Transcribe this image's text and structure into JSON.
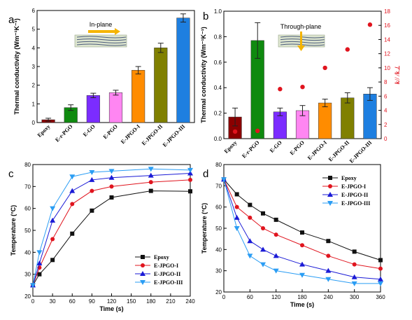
{
  "chart_data": [
    {
      "panel": "a",
      "type": "bar",
      "annotation": "In-plane",
      "ylabel": "Thermal conductivity (Wm⁻¹K⁻¹)",
      "ylim": [
        0,
        6
      ],
      "yticks": [
        0,
        1,
        2,
        3,
        4,
        5,
        6
      ],
      "categories": [
        "Epoxy",
        "E-r-PGO",
        "E-GO",
        "E-PGO",
        "E-JPGO-I",
        "E-JPGO-II",
        "E-JPGO-III"
      ],
      "values": [
        0.15,
        0.8,
        1.45,
        1.6,
        2.8,
        4.0,
        5.6
      ],
      "errors": [
        0.08,
        0.15,
        0.12,
        0.13,
        0.2,
        0.25,
        0.22
      ],
      "colors": [
        "#8b0000",
        "#0f8a0f",
        "#7b2cff",
        "#ff86f2",
        "#ff8c00",
        "#808000",
        "#1e7fe0"
      ]
    },
    {
      "panel": "b",
      "type": "bar",
      "annotation": "Through-plane",
      "ylabel": "Thermal conductivity (Wm⁻¹K⁻¹)",
      "ylim": [
        0,
        1.0
      ],
      "yticks": [
        0.0,
        0.2,
        0.4,
        0.6,
        0.8,
        1.0
      ],
      "y2label": "k// /k⊥",
      "y2lim": [
        0,
        18
      ],
      "y2ticks": [
        0,
        2,
        4,
        6,
        8,
        10,
        12,
        14,
        16,
        18
      ],
      "categories": [
        "Epoxy",
        "E-r-PGO",
        "E-GO",
        "E-PGO",
        "E-JPGO-I",
        "E-JPGO-II",
        "E-JPGO-III"
      ],
      "values": [
        0.17,
        0.77,
        0.21,
        0.22,
        0.28,
        0.32,
        0.35
      ],
      "errors": [
        0.07,
        0.14,
        0.03,
        0.04,
        0.03,
        0.04,
        0.05
      ],
      "ratio_values": [
        1.0,
        1.1,
        7.0,
        7.3,
        10.0,
        12.6,
        16.1
      ],
      "colors": [
        "#8b0000",
        "#0f8a0f",
        "#7b2cff",
        "#ff86f2",
        "#ff8c00",
        "#808000",
        "#1e7fe0"
      ],
      "ratio_color": "#e0141e"
    },
    {
      "panel": "c",
      "type": "line",
      "xlabel": "Time (s)",
      "ylabel": "Temperature (°C)",
      "xlim": [
        0,
        240
      ],
      "ylim": [
        20,
        80
      ],
      "xticks": [
        0,
        30,
        60,
        90,
        120,
        150,
        180,
        210,
        240
      ],
      "yticks": [
        20,
        30,
        40,
        50,
        60,
        70,
        80
      ],
      "legend": "bottom-right",
      "series": [
        {
          "name": "Epoxy",
          "color": "#111111",
          "marker": "square",
          "x": [
            0,
            10,
            30,
            60,
            90,
            120,
            180,
            240
          ],
          "y": [
            25,
            30,
            36.5,
            48.5,
            59,
            65,
            68,
            67.8
          ]
        },
        {
          "name": "E-JPGO-I",
          "color": "#e0141e",
          "marker": "circle",
          "x": [
            0,
            10,
            30,
            60,
            90,
            120,
            180,
            240
          ],
          "y": [
            25,
            33,
            46,
            62,
            68,
            70,
            72,
            73
          ]
        },
        {
          "name": "E-JPGO-II",
          "color": "#1a1ad6",
          "marker": "triangle-up",
          "x": [
            0,
            10,
            30,
            60,
            90,
            120,
            180,
            240
          ],
          "y": [
            25,
            35,
            54.5,
            68,
            73,
            74,
            75,
            76
          ]
        },
        {
          "name": "E-JPGO-III",
          "color": "#2a9df4",
          "marker": "triangle-down",
          "x": [
            0,
            10,
            30,
            60,
            90,
            120,
            180,
            240
          ],
          "y": [
            25,
            40,
            60,
            74.5,
            76.5,
            77,
            78,
            77.5
          ]
        }
      ]
    },
    {
      "panel": "d",
      "type": "line",
      "xlabel": "Time (s)",
      "ylabel": "Temperature (°C)",
      "xlim": [
        0,
        360
      ],
      "ylim": [
        20,
        80
      ],
      "xticks": [
        0,
        60,
        120,
        180,
        240,
        300,
        360
      ],
      "yticks": [
        20,
        30,
        40,
        50,
        60,
        70,
        80
      ],
      "legend": "top-right",
      "series": [
        {
          "name": "Epoxy",
          "color": "#111111",
          "marker": "square",
          "x": [
            0,
            30,
            60,
            90,
            120,
            180,
            240,
            300,
            360
          ],
          "y": [
            73,
            66,
            61,
            57,
            54,
            48,
            44,
            39,
            35
          ]
        },
        {
          "name": "E-JPGO-I",
          "color": "#e0141e",
          "marker": "circle",
          "x": [
            0,
            30,
            60,
            90,
            120,
            180,
            240,
            300,
            360
          ],
          "y": [
            73,
            60,
            55,
            50,
            47,
            42,
            37,
            33,
            31
          ]
        },
        {
          "name": "E-JPGO-II",
          "color": "#1a1ad6",
          "marker": "triangle-up",
          "x": [
            0,
            30,
            60,
            90,
            120,
            180,
            240,
            300,
            360
          ],
          "y": [
            73,
            55,
            44,
            40,
            37,
            33,
            30,
            27,
            26
          ]
        },
        {
          "name": "E-JPGO-III",
          "color": "#2a9df4",
          "marker": "triangle-down",
          "x": [
            0,
            30,
            60,
            90,
            120,
            180,
            240,
            300,
            360
          ],
          "y": [
            73,
            50,
            37,
            33,
            30,
            28,
            26,
            24,
            24
          ]
        }
      ]
    }
  ]
}
